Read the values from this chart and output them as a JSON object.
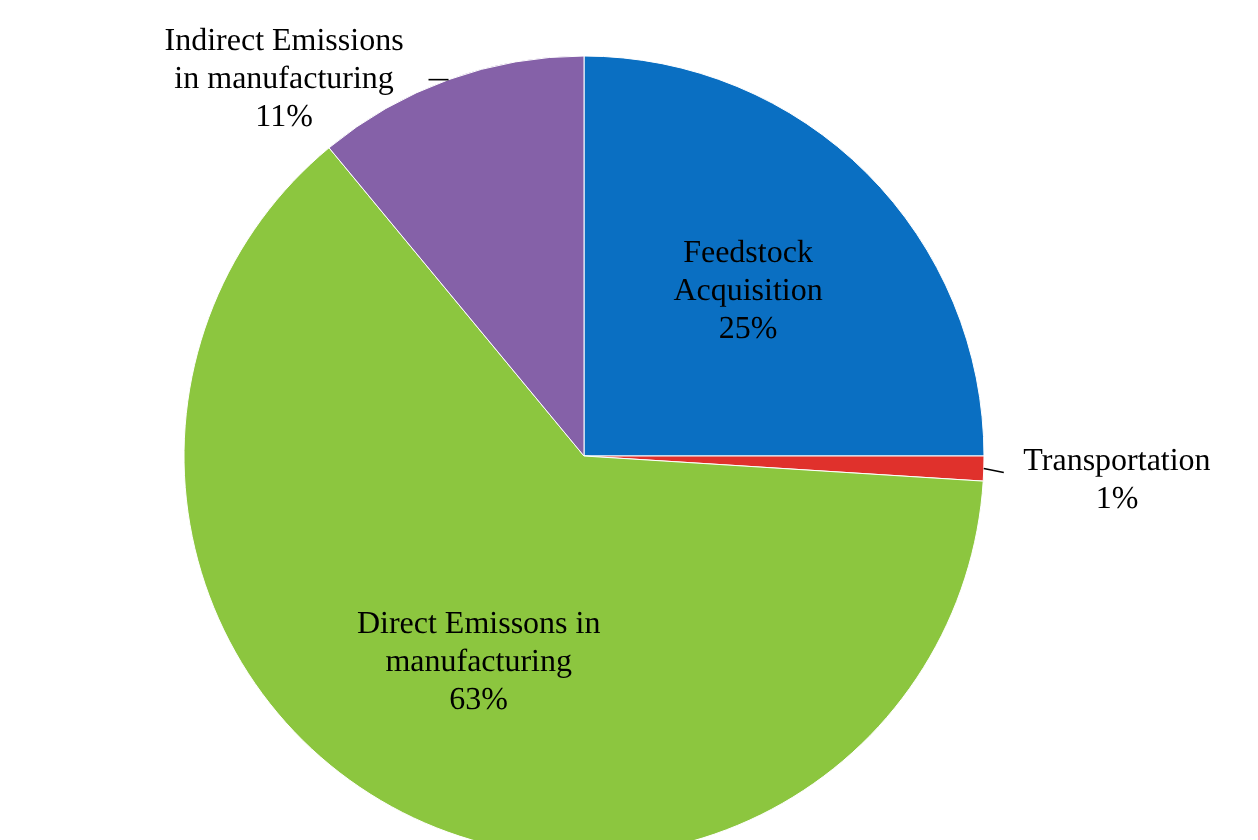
{
  "chart_data": {
    "type": "pie",
    "categories": [
      "Feedstock Acquisition",
      "Transportation",
      "Direct Emissons in manufacturing",
      "Indirect Emissions in manufacturing"
    ],
    "values": [
      25,
      1,
      63,
      11
    ],
    "colors": [
      "#0a6fc2",
      "#e0312c",
      "#8cc63f",
      "#8561a8"
    ],
    "value_labels": [
      "25%",
      "1%",
      "63%",
      "11%"
    ]
  }
}
